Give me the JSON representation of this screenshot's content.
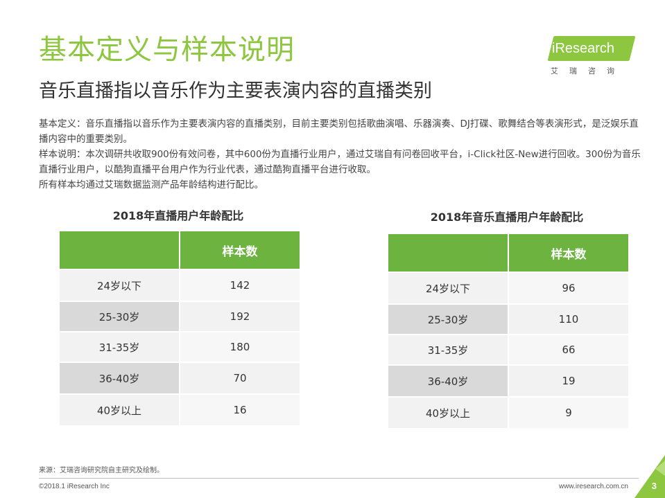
{
  "header": {
    "title": "基本定义与样本说明",
    "subtitle": "音乐直播指以音乐作为主要表演内容的直播类别"
  },
  "logo": {
    "text": "iResearch",
    "cn": "艾瑞咨询",
    "color": "#8dc63f"
  },
  "description": {
    "line1": "基本定义：音乐直播指以音乐作为主要表演内容的直播类别，目前主要类别包括歌曲演唱、乐器演奏、DJ打碟、歌舞结合等表演形式，是泛娱乐直播内容中的重要类别。",
    "line2": "样本说明：本次调研共收取900份有效问卷，其中600份为直播行业用户，通过艾瑞自有问卷回收平台，i-Click社区-New进行回收。300份为音乐直播行业用户，以酷狗直播平台用户作为行业代表，通过酷狗直播平台进行收取。",
    "line3": "所有样本均通过艾瑞数据监测产品年龄结构进行配比。"
  },
  "tables": {
    "left": {
      "caption": "2018年直播用户年龄配比",
      "header_label": "",
      "header_value": "样本数",
      "rows": [
        {
          "age": "24岁以下",
          "count": "142"
        },
        {
          "age": "25-30岁",
          "count": "192"
        },
        {
          "age": "31-35岁",
          "count": "180"
        },
        {
          "age": "36-40岁",
          "count": "70"
        },
        {
          "age": "40岁以上",
          "count": "16"
        }
      ]
    },
    "right": {
      "caption": "2018年音乐直播用户年龄配比",
      "header_label": "",
      "header_value": "样本数",
      "rows": [
        {
          "age": "24岁以下",
          "count": "96"
        },
        {
          "age": "25-30岁",
          "count": "110"
        },
        {
          "age": "31-35岁",
          "count": "66"
        },
        {
          "age": "36-40岁",
          "count": "19"
        },
        {
          "age": "40岁以上",
          "count": "9"
        }
      ]
    }
  },
  "footer": {
    "source": "来源：艾瑞咨询研究院自主研究及绘制。",
    "copyright": "©2018.1 iResearch Inc",
    "website": "www.iresearch.com.cn",
    "page_number": "3"
  },
  "colors": {
    "accent": "#8dc63f",
    "table_header": "#6cb33f"
  }
}
